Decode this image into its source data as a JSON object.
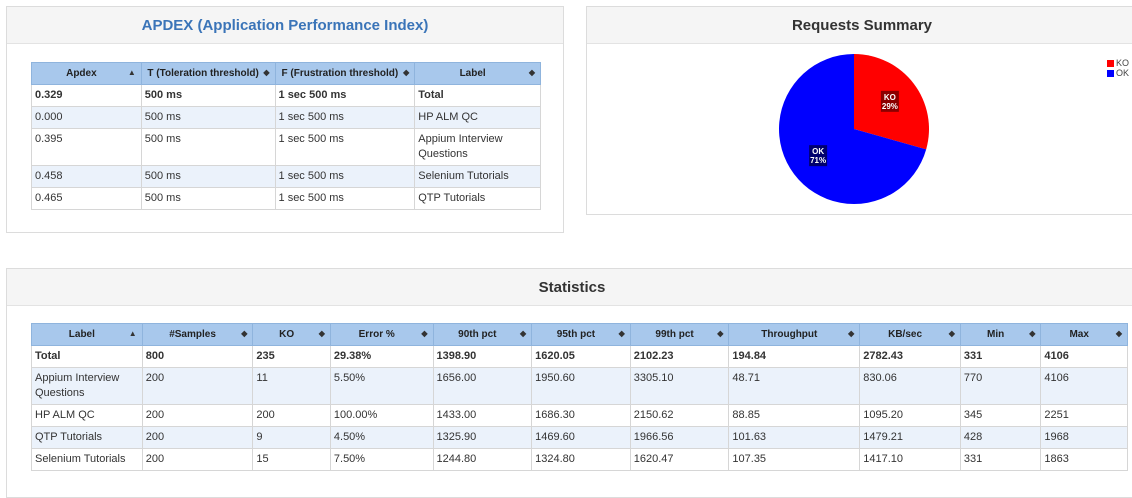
{
  "apdex": {
    "title": "APDEX (Application Performance Index)",
    "columns": [
      "Apdex",
      "T (Toleration threshold)",
      "F (Frustration threshold)",
      "Label"
    ],
    "rows": [
      [
        "0.329",
        "500 ms",
        "1 sec 500 ms",
        "Total"
      ],
      [
        "0.000",
        "500 ms",
        "1 sec 500 ms",
        "HP ALM QC"
      ],
      [
        "0.395",
        "500 ms",
        "1 sec 500 ms",
        "Appium Interview Questions"
      ],
      [
        "0.458",
        "500 ms",
        "1 sec 500 ms",
        "Selenium Tutorials"
      ],
      [
        "0.465",
        "500 ms",
        "1 sec 500 ms",
        "QTP Tutorials"
      ]
    ]
  },
  "requests": {
    "title": "Requests Summary",
    "slices": [
      {
        "label": "KO",
        "percent_text": "29%",
        "value": 29.38,
        "color": "#ff0000"
      },
      {
        "label": "OK",
        "percent_text": "71%",
        "value": 70.62,
        "color": "#0000ff"
      }
    ],
    "legend": [
      "KO",
      "OK"
    ]
  },
  "stats": {
    "title": "Statistics",
    "columns": [
      "Label",
      "#Samples",
      "KO",
      "Error %",
      "90th pct",
      "95th pct",
      "99th pct",
      "Throughput",
      "KB/sec",
      "Min",
      "Max"
    ],
    "rows": [
      [
        "Total",
        "800",
        "235",
        "29.38%",
        "1398.90",
        "1620.05",
        "2102.23",
        "194.84",
        "2782.43",
        "331",
        "4106"
      ],
      [
        "Appium Interview Questions",
        "200",
        "11",
        "5.50%",
        "1656.00",
        "1950.60",
        "3305.10",
        "48.71",
        "830.06",
        "770",
        "4106"
      ],
      [
        "HP ALM QC",
        "200",
        "200",
        "100.00%",
        "1433.00",
        "1686.30",
        "2150.62",
        "88.85",
        "1095.20",
        "345",
        "2251"
      ],
      [
        "QTP Tutorials",
        "200",
        "9",
        "4.50%",
        "1325.90",
        "1469.60",
        "1966.56",
        "101.63",
        "1479.21",
        "428",
        "1968"
      ],
      [
        "Selenium Tutorials",
        "200",
        "15",
        "7.50%",
        "1244.80",
        "1324.80",
        "1620.47",
        "107.35",
        "1417.10",
        "331",
        "1863"
      ]
    ]
  }
}
